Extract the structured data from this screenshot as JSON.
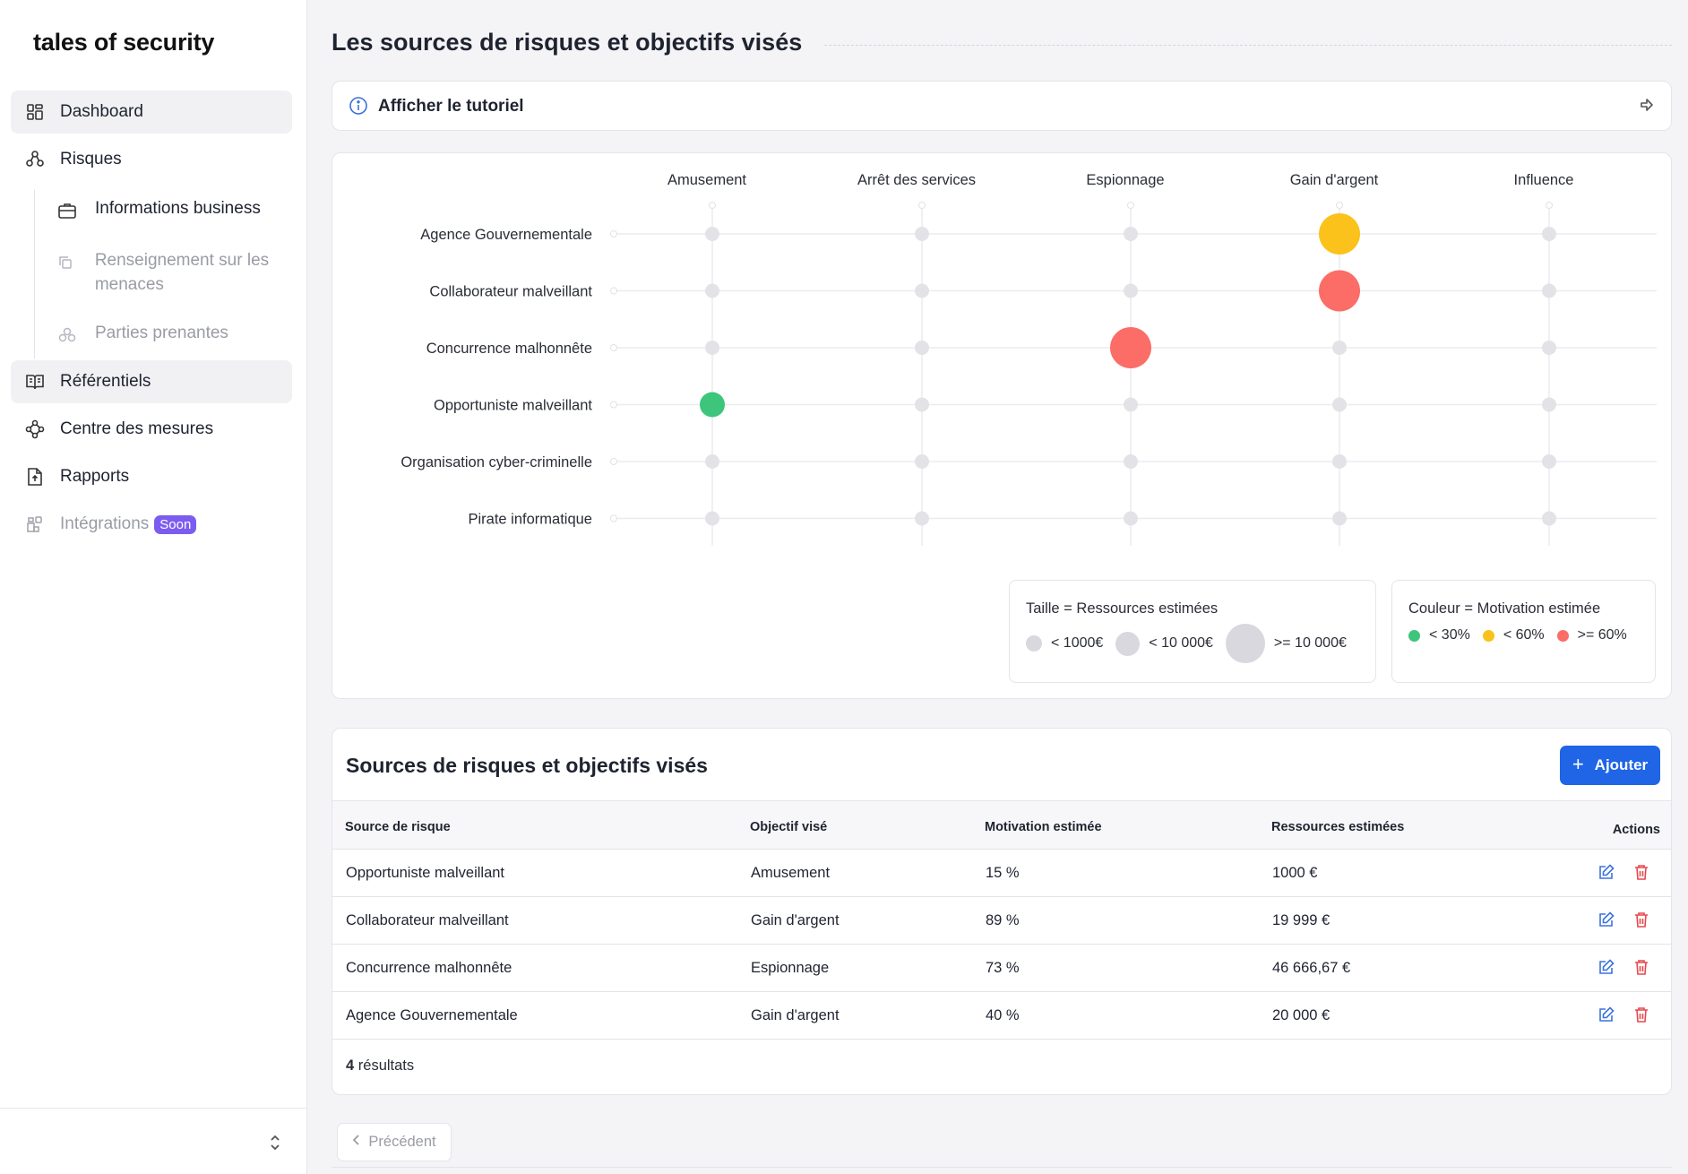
{
  "app": {
    "logo": "tales of security"
  },
  "sidebar": {
    "items": [
      {
        "label": "Dashboard",
        "icon": "dashboard-icon"
      },
      {
        "label": "Risques",
        "icon": "risks-icon"
      },
      {
        "label": "Référentiels",
        "icon": "book-icon"
      },
      {
        "label": "Centre des mesures",
        "icon": "measures-icon"
      },
      {
        "label": "Rapports",
        "icon": "report-icon"
      },
      {
        "label": "Intégrations",
        "icon": "integrations-icon",
        "badge": "Soon"
      }
    ],
    "subitems": [
      {
        "label": "Informations business",
        "icon": "briefcase-icon"
      },
      {
        "label": "Renseignement sur les menaces",
        "icon": "copy-icon"
      },
      {
        "label": "Parties prenantes",
        "icon": "stakeholders-icon"
      }
    ]
  },
  "page": {
    "title": "Les sources de risques et objectifs visés"
  },
  "tutorial": {
    "label": "Afficher le tutoriel"
  },
  "chart_data": {
    "type": "scatter",
    "title": "",
    "columns": [
      "Amusement",
      "Arrêt des services",
      "Espionnage",
      "Gain d'argent",
      "Influence"
    ],
    "rows": [
      "Agence Gouvernementale",
      "Collaborateur malveillant",
      "Concurrence malhonnête",
      "Opportuniste malveillant",
      "Organisation cyber-criminelle",
      "Pirate informatique"
    ],
    "points": [
      {
        "source": "Agence Gouvernementale",
        "objective": "Gain d'argent",
        "motivation": 40,
        "resources": 20000
      },
      {
        "source": "Collaborateur malveillant",
        "objective": "Gain d'argent",
        "motivation": 89,
        "resources": 19999
      },
      {
        "source": "Concurrence malhonnête",
        "objective": "Espionnage",
        "motivation": 73,
        "resources": 46666.67
      },
      {
        "source": "Opportuniste malveillant",
        "objective": "Amusement",
        "motivation": 15,
        "resources": 1000
      }
    ],
    "colors": {
      "low": "#3dc57c",
      "mid": "#fbc21b",
      "high": "#fb6d66",
      "empty": "#e3e3e7"
    }
  },
  "legend": {
    "size_title": "Taille = Ressources estimées",
    "sizes": [
      "< 1000€",
      "< 10 000€",
      ">= 10 000€"
    ],
    "color_title": "Couleur = Motivation estimée",
    "colors": [
      "< 30%",
      "< 60%",
      ">= 60%"
    ]
  },
  "table": {
    "title": "Sources de risques et objectifs visés",
    "add_label": "Ajouter",
    "headers": [
      "Source de risque",
      "Objectif visé",
      "Motivation estimée",
      "Ressources estimées",
      "Actions"
    ],
    "rows": [
      [
        "Opportuniste malveillant",
        "Amusement",
        "15 %",
        "1000 €"
      ],
      [
        "Collaborateur malveillant",
        "Gain d'argent",
        "89 %",
        "19 999 €"
      ],
      [
        "Concurrence malhonnête",
        "Espionnage",
        "73 %",
        "46 666,67 €"
      ],
      [
        "Agence Gouvernementale",
        "Gain d'argent",
        "40 %",
        "20 000 €"
      ]
    ],
    "count_number": "4",
    "count_label": "résultats"
  },
  "pagination": {
    "prev_label": "Précédent"
  }
}
